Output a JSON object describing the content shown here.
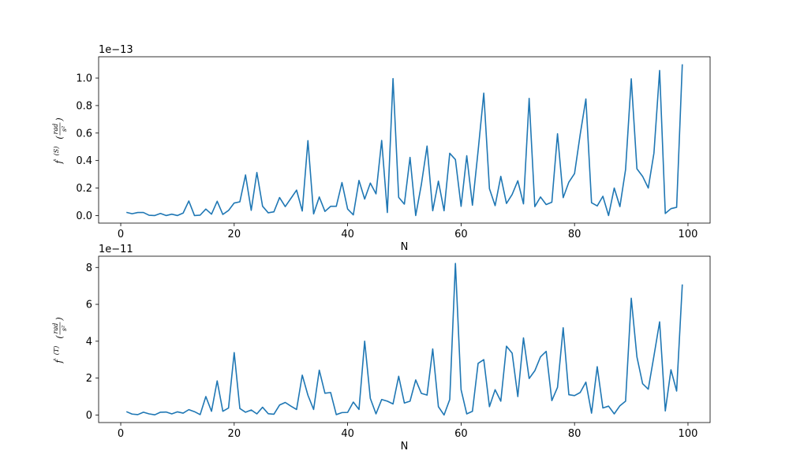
{
  "chart_data": [
    {
      "type": "line",
      "title": "",
      "xlabel": "N",
      "ylabel": "ḟ (S) (rad/s²)",
      "ylabel_parts": {
        "symbol": "ḟ",
        "superscript": "(S)",
        "num": "rad",
        "den": "s²"
      },
      "multiplier": "1e−13",
      "xlim": [
        -3.9,
        103.9
      ],
      "ylim": [
        -0.055,
        1.155
      ],
      "xticks": [
        0,
        20,
        40,
        60,
        80,
        100
      ],
      "yticks": [
        0.0,
        0.2,
        0.4,
        0.6,
        0.8,
        1.0
      ],
      "ytick_labels": [
        "0.0",
        "0.2",
        "0.4",
        "0.6",
        "0.8",
        "1.0"
      ],
      "grid": false,
      "color": "#1f77b4",
      "x": [
        1,
        2,
        3,
        4,
        5,
        6,
        7,
        8,
        9,
        10,
        11,
        12,
        13,
        14,
        15,
        16,
        17,
        18,
        19,
        20,
        21,
        22,
        23,
        24,
        25,
        26,
        27,
        28,
        29,
        30,
        31,
        32,
        33,
        34,
        35,
        36,
        37,
        38,
        39,
        40,
        41,
        42,
        43,
        44,
        45,
        46,
        47,
        48,
        49,
        50,
        51,
        52,
        53,
        54,
        55,
        56,
        57,
        58,
        59,
        60,
        61,
        62,
        63,
        64,
        65,
        66,
        67,
        68,
        69,
        70,
        71,
        72,
        73,
        74,
        75,
        76,
        77,
        78,
        79,
        80,
        81,
        82,
        83,
        84,
        85,
        86,
        87,
        88,
        89,
        90,
        91,
        92,
        93,
        94,
        95,
        96,
        97,
        98,
        99
      ],
      "values": [
        0.023,
        0.013,
        0.022,
        0.022,
        0.002,
        0.0,
        0.015,
        0.0,
        0.01,
        0.0,
        0.018,
        0.106,
        0.0,
        0.003,
        0.047,
        0.01,
        0.104,
        0.008,
        0.037,
        0.091,
        0.1,
        0.295,
        0.038,
        0.313,
        0.068,
        0.02,
        0.027,
        0.131,
        0.065,
        0.125,
        0.185,
        0.033,
        0.545,
        0.012,
        0.135,
        0.03,
        0.067,
        0.067,
        0.24,
        0.047,
        0.005,
        0.255,
        0.12,
        0.236,
        0.158,
        0.546,
        0.022,
        0.996,
        0.132,
        0.083,
        0.423,
        0.0,
        0.227,
        0.505,
        0.035,
        0.25,
        0.035,
        0.453,
        0.407,
        0.067,
        0.435,
        0.075,
        0.47,
        0.89,
        0.195,
        0.072,
        0.285,
        0.088,
        0.153,
        0.253,
        0.085,
        0.852,
        0.065,
        0.135,
        0.08,
        0.097,
        0.595,
        0.13,
        0.243,
        0.305,
        0.59,
        0.848,
        0.093,
        0.07,
        0.14,
        0.0,
        0.2,
        0.065,
        0.335,
        0.995,
        0.34,
        0.285,
        0.2,
        0.455,
        1.055,
        0.015,
        0.05,
        0.06,
        1.1
      ]
    },
    {
      "type": "line",
      "title": "",
      "xlabel": "N",
      "ylabel": "ḟ (T) (rad/s²)",
      "ylabel_parts": {
        "symbol": "ḟ",
        "superscript": "(T)",
        "num": "rad",
        "den": "s²"
      },
      "multiplier": "1e−11",
      "xlim": [
        -3.9,
        103.9
      ],
      "ylim": [
        -0.41,
        8.61
      ],
      "xticks": [
        0,
        20,
        40,
        60,
        80,
        100
      ],
      "yticks": [
        0,
        2,
        4,
        6,
        8
      ],
      "ytick_labels": [
        "0",
        "2",
        "4",
        "6",
        "8"
      ],
      "grid": false,
      "color": "#1f77b4",
      "x": [
        1,
        2,
        3,
        4,
        5,
        6,
        7,
        8,
        9,
        10,
        11,
        12,
        13,
        14,
        15,
        16,
        17,
        18,
        19,
        20,
        21,
        22,
        23,
        24,
        25,
        26,
        27,
        28,
        29,
        30,
        31,
        32,
        33,
        34,
        35,
        36,
        37,
        38,
        39,
        40,
        41,
        42,
        43,
        44,
        45,
        46,
        47,
        48,
        49,
        50,
        51,
        52,
        53,
        54,
        55,
        56,
        57,
        58,
        59,
        60,
        61,
        62,
        63,
        64,
        65,
        66,
        67,
        68,
        69,
        70,
        71,
        72,
        73,
        74,
        75,
        76,
        77,
        78,
        79,
        80,
        81,
        82,
        83,
        84,
        85,
        86,
        87,
        88,
        89,
        90,
        91,
        92,
        93,
        94,
        95,
        96,
        97,
        98,
        99
      ],
      "values": [
        0.18,
        0.05,
        0.02,
        0.15,
        0.06,
        0.01,
        0.15,
        0.16,
        0.06,
        0.17,
        0.1,
        0.29,
        0.18,
        0.02,
        1.0,
        0.2,
        1.85,
        0.2,
        0.38,
        3.38,
        0.35,
        0.15,
        0.27,
        0.06,
        0.42,
        0.07,
        0.04,
        0.54,
        0.68,
        0.48,
        0.3,
        2.16,
        1.07,
        0.3,
        2.43,
        1.18,
        1.22,
        0.02,
        0.13,
        0.14,
        0.7,
        0.3,
        4.0,
        0.9,
        0.06,
        0.84,
        0.75,
        0.6,
        2.1,
        0.65,
        0.75,
        1.9,
        1.17,
        1.08,
        3.58,
        0.45,
        0.0,
        0.84,
        8.22,
        1.37,
        0.06,
        0.2,
        2.8,
        3.0,
        0.45,
        1.37,
        0.75,
        3.73,
        3.35,
        1.0,
        4.18,
        1.98,
        2.4,
        3.15,
        3.45,
        0.78,
        1.5,
        4.73,
        1.1,
        1.05,
        1.22,
        1.78,
        0.1,
        2.62,
        0.38,
        0.48,
        0.06,
        0.5,
        0.75,
        6.33,
        3.15,
        1.7,
        1.4,
        3.2,
        5.05,
        0.22,
        2.45,
        1.3,
        7.08
      ]
    }
  ]
}
